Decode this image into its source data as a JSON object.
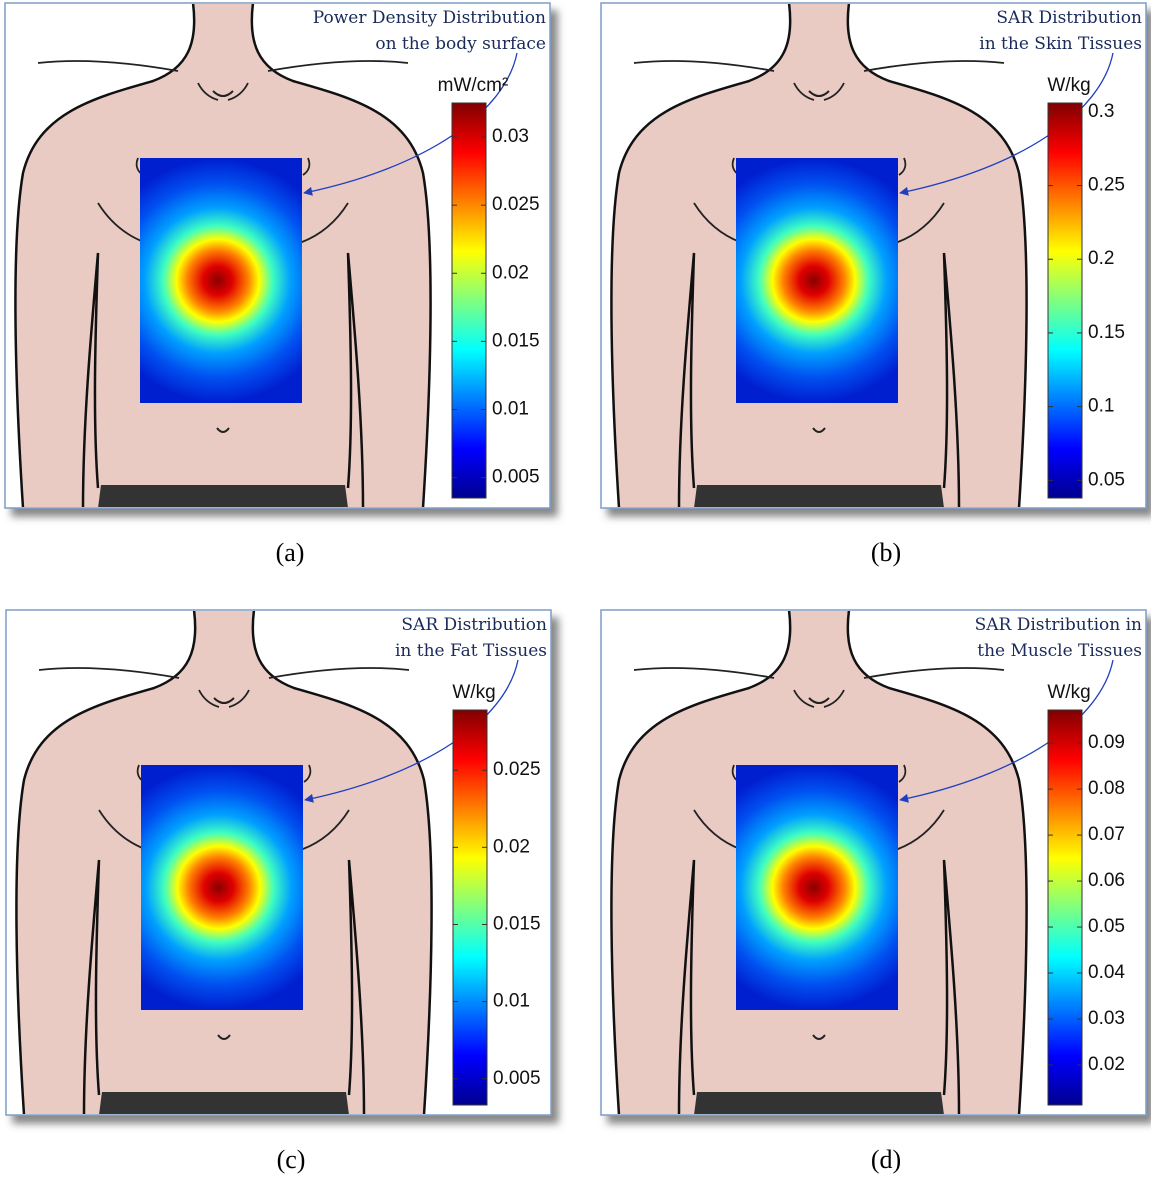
{
  "chart_data": [
    {
      "type": "heatmap",
      "annotation": [
        "Power Density Distribution",
        "on the body surface"
      ],
      "unit": "mW/cm²",
      "ylim": [
        0.0035,
        0.0325
      ],
      "yticks": [
        0.005,
        0.01,
        0.015,
        0.02,
        0.025,
        0.03
      ],
      "caption": "(a)"
    },
    {
      "type": "heatmap",
      "annotation": [
        "SAR Distribution",
        "in the Skin Tissues"
      ],
      "unit": "W/kg",
      "ylim": [
        0.038,
        0.306
      ],
      "yticks": [
        0.05,
        0.1,
        0.15,
        0.2,
        0.25,
        0.3
      ],
      "caption": "(b)"
    },
    {
      "type": "heatmap",
      "annotation": [
        "SAR Distribution",
        "in the Fat Tissues"
      ],
      "unit": "W/kg",
      "ylim": [
        0.0033,
        0.0289
      ],
      "yticks": [
        0.005,
        0.01,
        0.015,
        0.02,
        0.025
      ],
      "caption": "(c)"
    },
    {
      "type": "heatmap",
      "annotation": [
        "SAR Distribution in",
        "the Muscle Tissues"
      ],
      "unit": "W/kg",
      "ylim": [
        0.0113,
        0.0972
      ],
      "yticks": [
        0.02,
        0.03,
        0.04,
        0.05,
        0.06,
        0.07,
        0.08,
        0.09
      ],
      "caption": "(d)"
    }
  ]
}
